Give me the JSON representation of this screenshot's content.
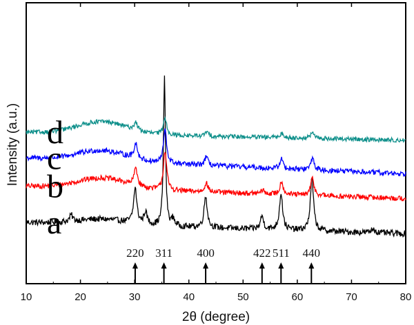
{
  "chart_data": {
    "type": "line",
    "title": "",
    "xlabel": "2θ (degree)",
    "ylabel": "Intensity (a.u.)",
    "xlim": [
      10,
      80
    ],
    "xticks": [
      10,
      20,
      30,
      40,
      50,
      60,
      70,
      80
    ],
    "y_ticks_shown": false,
    "grid": false,
    "legend": "none",
    "series": [
      {
        "name": "a",
        "color": "#000000",
        "baseline_start": 0.15,
        "baseline_end": 0.02,
        "hump": 0.06,
        "noise": 0.035,
        "peaks": [
          {
            "x": 18.3,
            "h": 0.07
          },
          {
            "x": 30.1,
            "h": 0.4
          },
          {
            "x": 32.0,
            "h": 0.14
          },
          {
            "x": 35.5,
            "h": 1.7
          },
          {
            "x": 37.1,
            "h": 0.08
          },
          {
            "x": 43.1,
            "h": 0.36
          },
          {
            "x": 53.5,
            "h": 0.15
          },
          {
            "x": 57.0,
            "h": 0.42
          },
          {
            "x": 62.7,
            "h": 0.6
          },
          {
            "x": 74.0,
            "h": 0.05
          }
        ]
      },
      {
        "name": "b",
        "color": "#ff0000",
        "baseline_start": 0.56,
        "baseline_end": 0.42,
        "hump": 0.12,
        "noise": 0.03,
        "peaks": [
          {
            "x": 30.2,
            "h": 0.21
          },
          {
            "x": 35.6,
            "h": 0.45
          },
          {
            "x": 43.2,
            "h": 0.11
          },
          {
            "x": 53.6,
            "h": 0.04
          },
          {
            "x": 57.1,
            "h": 0.15
          },
          {
            "x": 62.8,
            "h": 0.2
          }
        ]
      },
      {
        "name": "c",
        "color": "#0000ff",
        "baseline_start": 0.88,
        "baseline_end": 0.7,
        "hump": 0.12,
        "noise": 0.03,
        "peaks": [
          {
            "x": 30.2,
            "h": 0.18
          },
          {
            "x": 35.6,
            "h": 0.38
          },
          {
            "x": 43.2,
            "h": 0.1
          },
          {
            "x": 57.1,
            "h": 0.11
          },
          {
            "x": 62.8,
            "h": 0.14
          }
        ]
      },
      {
        "name": "d",
        "color": "#0d8f8a",
        "baseline_start": 1.17,
        "baseline_end": 1.08,
        "hump": 0.14,
        "noise": 0.025,
        "peaks": [
          {
            "x": 30.2,
            "h": 0.09
          },
          {
            "x": 35.6,
            "h": 0.2
          },
          {
            "x": 43.3,
            "h": 0.05
          },
          {
            "x": 57.1,
            "h": 0.05
          },
          {
            "x": 62.8,
            "h": 0.07
          }
        ]
      }
    ],
    "reference_lines": [
      {
        "hkl": "220",
        "x": 30.1
      },
      {
        "hkl": "311",
        "x": 35.4
      },
      {
        "hkl": "400",
        "x": 43.1
      },
      {
        "hkl": "422",
        "x": 53.5
      },
      {
        "hkl": "511",
        "x": 57.0
      },
      {
        "hkl": "440",
        "x": 62.6
      }
    ]
  }
}
